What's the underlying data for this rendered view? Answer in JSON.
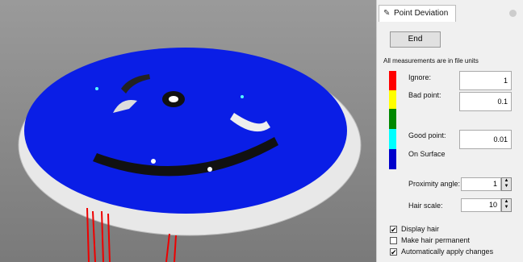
{
  "panel": {
    "title": "Point Deviation",
    "end_button": "End",
    "note": "All measurements are in file units",
    "thresholds": [
      {
        "label": "Ignore:",
        "value": 1
      },
      {
        "label": "Bad point:",
        "value": 0.1
      },
      {
        "label": "Good point:",
        "value": 0.01
      }
    ],
    "on_surface": "On Surface",
    "proximity_angle": {
      "label": "Proximity angle:",
      "value": 1
    },
    "hair_scale": {
      "label": "Hair scale:",
      "value": 10
    },
    "options": [
      {
        "label": "Display hair",
        "checked": true
      },
      {
        "label": "Make hair permanent",
        "checked": false
      },
      {
        "label": "Automatically apply changes",
        "checked": true
      }
    ]
  }
}
